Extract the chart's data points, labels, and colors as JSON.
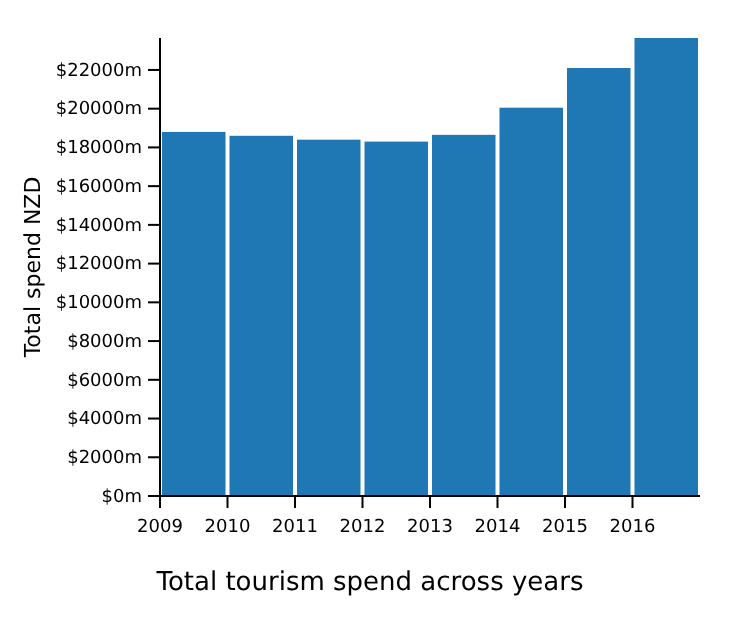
{
  "chart_data": {
    "type": "bar",
    "title": "Total tourism spend across years",
    "ylabel": "Total spend NZD",
    "x": [
      2009.5,
      2010.5,
      2011.5,
      2012.5,
      2013.5,
      2014.5,
      2015.5,
      2016.5
    ],
    "values": [
      18800,
      18600,
      18400,
      18300,
      18650,
      20050,
      22100,
      23650
    ],
    "color": "#1f77b4",
    "xlim": [
      2009,
      2017
    ],
    "xticks": [
      2009,
      2010,
      2011,
      2012,
      2013,
      2014,
      2015,
      2016
    ],
    "ylim": [
      0,
      23650
    ],
    "yticks": [
      {
        "value": 0,
        "label": "$0m"
      },
      {
        "value": 2000,
        "label": "$2000m"
      },
      {
        "value": 4000,
        "label": "$4000m"
      },
      {
        "value": 6000,
        "label": "$6000m"
      },
      {
        "value": 8000,
        "label": "$8000m"
      },
      {
        "value": 10000,
        "label": "$10000m"
      },
      {
        "value": 12000,
        "label": "$12000m"
      },
      {
        "value": 14000,
        "label": "$14000m"
      },
      {
        "value": 16000,
        "label": "$16000m"
      },
      {
        "value": 18000,
        "label": "$18000m"
      },
      {
        "value": 20000,
        "label": "$20000m"
      },
      {
        "value": 22000,
        "label": "$22000m"
      }
    ],
    "grid": false
  }
}
